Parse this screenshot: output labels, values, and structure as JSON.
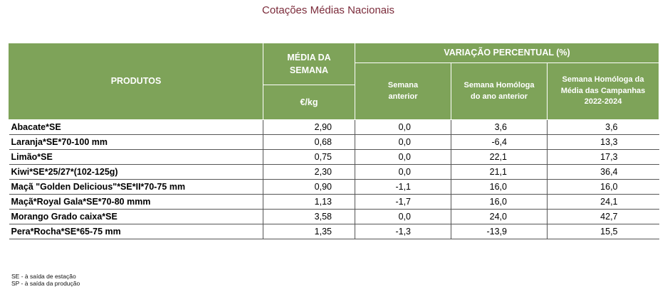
{
  "title": "Cotações Médias Nacionais",
  "table": {
    "headers": {
      "products": "PRODUTOS",
      "media_line1": "MÉDIA DA",
      "media_line2": "SEMANA",
      "unit": "€/kg",
      "variation": "VARIAÇÃO PERCENTUAL (%)",
      "prev_week_line1": "Semana",
      "prev_week_line2": "anterior",
      "homolog_line1": "Semana Homóloga",
      "homolog_line2": "do ano anterior",
      "campaign_line1": "Semana Homóloga da",
      "campaign_line2": "Média das Campanhas",
      "campaign_line3": "2022-2024"
    },
    "rows": [
      {
        "product": "Abacate*SE",
        "avg": "2,90",
        "prev_week": "0,0",
        "homolog": "3,6",
        "campaign": "3,6"
      },
      {
        "product": "Laranja*SE*70-100 mm",
        "avg": "0,68",
        "prev_week": "0,0",
        "homolog": "-6,4",
        "campaign": "13,3"
      },
      {
        "product": "Limão*SE",
        "avg": "0,75",
        "prev_week": "0,0",
        "homolog": "22,1",
        "campaign": "17,3"
      },
      {
        "product": "Kiwi*SE*25/27*(102-125g)",
        "avg": "2,30",
        "prev_week": "0,0",
        "homolog": "21,1",
        "campaign": "36,4"
      },
      {
        "product": "Maçã \"Golden Delicious\"*SE*II*70-75 mm",
        "avg": "0,90",
        "prev_week": "-1,1",
        "homolog": "16,0",
        "campaign": "16,0"
      },
      {
        "product": "Maçã*Royal Gala*SE*70-80 mmm",
        "avg": "1,13",
        "prev_week": "-1,7",
        "homolog": "16,0",
        "campaign": "24,1"
      },
      {
        "product": "Morango Grado caixa*SE",
        "avg": "3,58",
        "prev_week": "0,0",
        "homolog": "24,0",
        "campaign": "42,7"
      },
      {
        "product": "Pera*Rocha*SE*65-75 mm",
        "avg": "1,35",
        "prev_week": "-1,3",
        "homolog": "-13,9",
        "campaign": "15,5"
      }
    ]
  },
  "legend": {
    "line1": "SE - à saída de estação",
    "line2": "SP - à saída da produção"
  }
}
